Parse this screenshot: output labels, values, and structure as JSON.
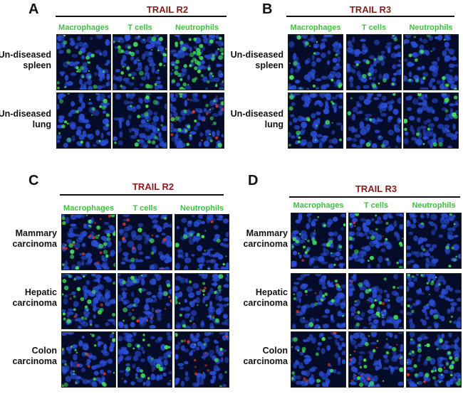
{
  "figure": {
    "panels": [
      {
        "letter": "A",
        "marker": "TRAIL R2",
        "columns": [
          "Macrophages",
          "T cells",
          "Neutrophils"
        ],
        "rows": [
          {
            "line1": "Un-diseased",
            "line2": "spleen"
          },
          {
            "line1": "Un-diseased",
            "line2": "lung"
          }
        ]
      },
      {
        "letter": "B",
        "marker": "TRAIL R3",
        "columns": [
          "Macrophages",
          "T cells",
          "Neutrophils"
        ],
        "rows": [
          {
            "line1": "Un-diseased",
            "line2": "spleen"
          },
          {
            "line1": "Un-diseased",
            "line2": "lung"
          }
        ]
      },
      {
        "letter": "C",
        "marker": "TRAIL R2",
        "columns": [
          "Macrophages",
          "T cells",
          "Neutrophils"
        ],
        "rows": [
          {
            "line1": "Mammary",
            "line2": "carcinoma"
          },
          {
            "line1": "Hepatic",
            "line2": "carcinoma"
          },
          {
            "line1": "Colon",
            "line2": "carcinoma"
          }
        ]
      },
      {
        "letter": "D",
        "marker": "TRAIL R3",
        "columns": [
          "Macrophages",
          "T cells",
          "Neutrophils"
        ],
        "rows": [
          {
            "line1": "Mammary",
            "line2": "carcinoma"
          },
          {
            "line1": "Hepatic",
            "line2": "carcinoma"
          },
          {
            "line1": "Colon",
            "line2": "carcinoma"
          }
        ]
      }
    ],
    "colors": {
      "marker_text": "#8b1a1a",
      "column_text": "#3fbf3f",
      "nuclei_stain": "#2a4fd6",
      "green_stain": "#3fe05a",
      "red_stain": "#d83a2a",
      "tile_background": "#050c2a"
    }
  }
}
